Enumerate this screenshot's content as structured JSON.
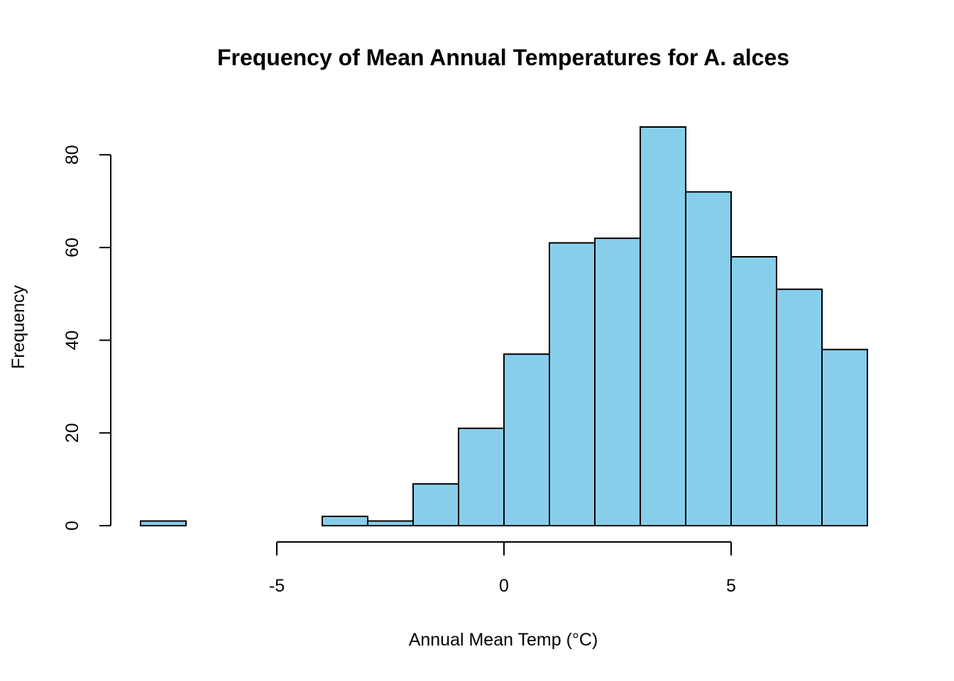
{
  "chart_data": {
    "type": "bar",
    "title": "Frequency of Mean Annual Temperatures for A. alces",
    "xlabel": "Annual Mean Temp (°C)",
    "ylabel": "Frequency",
    "bin_edges": [
      -8,
      -7,
      -6,
      -5,
      -4,
      -3,
      -2,
      -1,
      0,
      1,
      2,
      3,
      4,
      5,
      6,
      7,
      8
    ],
    "values": [
      1,
      0,
      0,
      0,
      2,
      1,
      9,
      21,
      37,
      61,
      62,
      86,
      72,
      58,
      51,
      38
    ],
    "xlim": [
      -8,
      8
    ],
    "ylim": [
      0,
      86
    ],
    "x_ticks": [
      -5,
      0,
      5
    ],
    "x_tick_labels": [
      "-5",
      "0",
      "5"
    ],
    "y_ticks": [
      0,
      20,
      40,
      60,
      80
    ],
    "y_tick_labels": [
      "0",
      "20",
      "40",
      "60",
      "80"
    ],
    "bar_color": "#87CEEB",
    "grid": false,
    "legend": "none"
  }
}
